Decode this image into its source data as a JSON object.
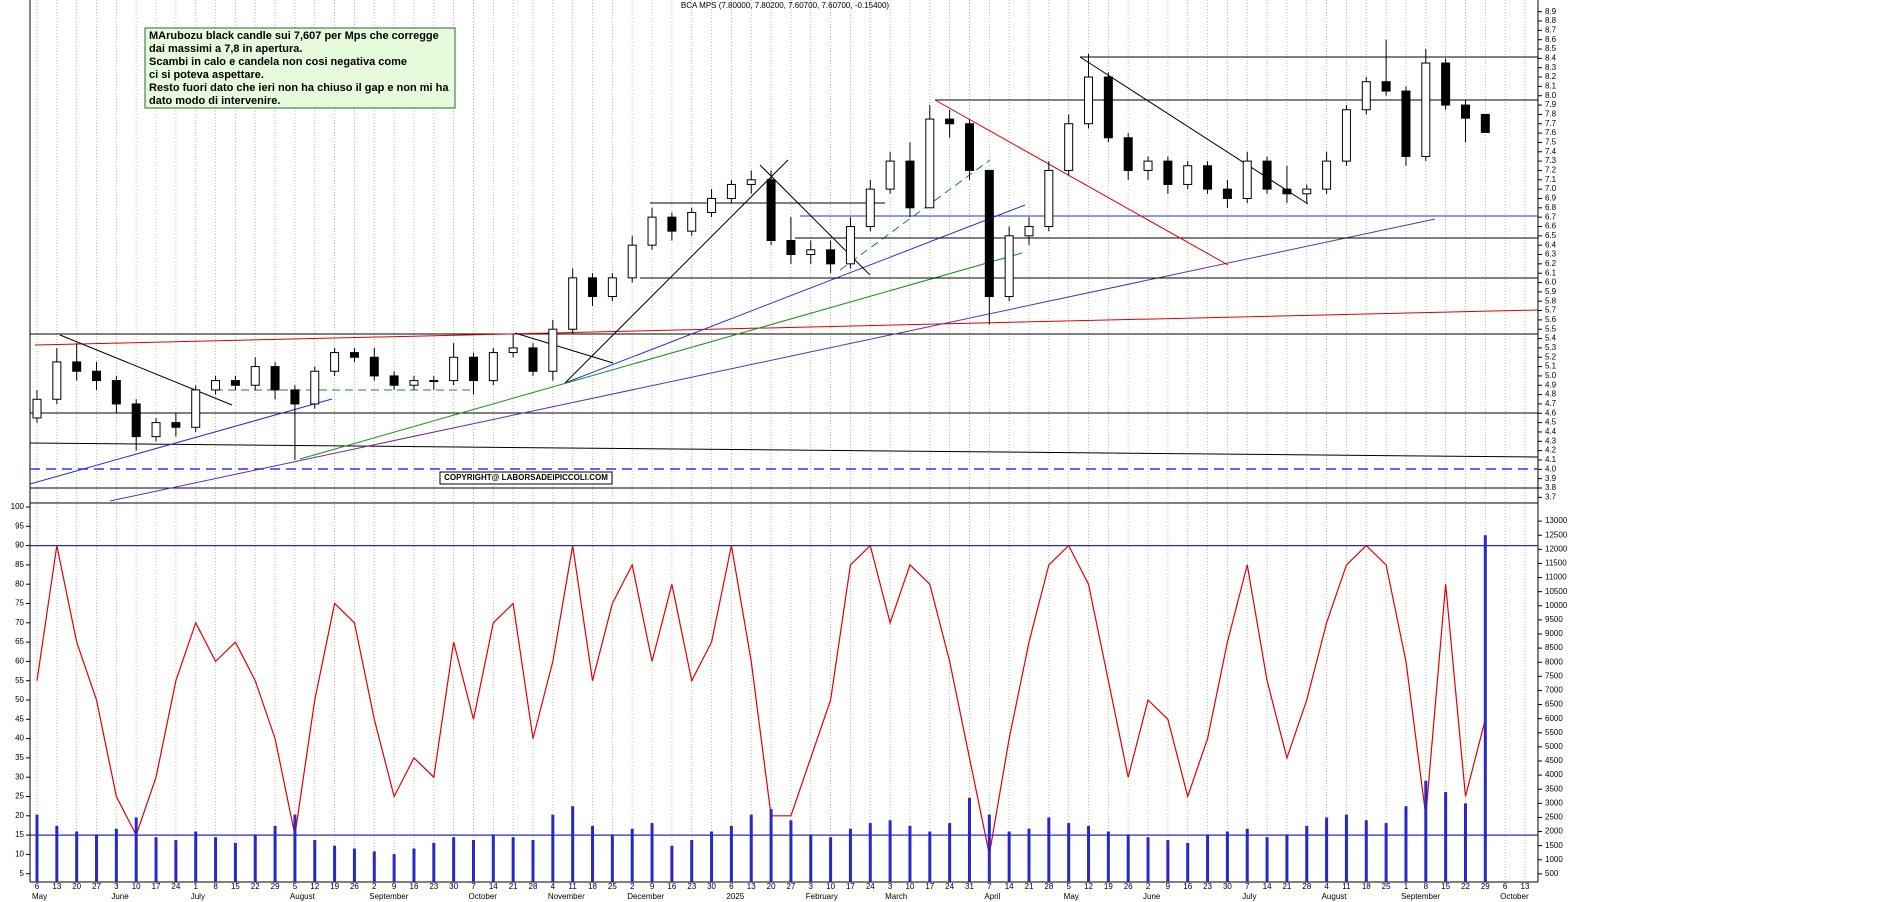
{
  "chart_data": [
    {
      "type": "candlestick",
      "title": "BCA MPS (7.80000, 7.80200, 7.60700, 7.60700, -0.15400)",
      "annotation": [
        "MArubozu black candle sui 7,607 per Mps che corregge",
        "dai massimi a 7,8 in apertura.",
        "Scambi in calo e candela non cosi negativa come",
        "ci si poteva aspettare.",
        "Resto fuori dato che ieri non ha chiuso il gap e non mi ha",
        "dato modo di intervenire."
      ],
      "copyright": "COPYRIGHT@ LABORSADEIPICCOLI.COM",
      "categories": [
        "6",
        "13",
        "20",
        "27",
        "3",
        "10",
        "17",
        "24",
        "1",
        "8",
        "15",
        "22",
        "29",
        "5",
        "12",
        "19",
        "26",
        "2",
        "9",
        "16",
        "23",
        "30",
        "7",
        "14",
        "21",
        "28",
        "4",
        "11",
        "18",
        "25",
        "2",
        "9",
        "16",
        "23",
        "30",
        "6",
        "13",
        "20",
        "27",
        "3",
        "10",
        "17",
        "24",
        "3",
        "10",
        "17",
        "24",
        "31",
        "7",
        "14",
        "21",
        "28",
        "5",
        "12",
        "19",
        "26",
        "2",
        "9",
        "16",
        "23",
        "30",
        "7",
        "14",
        "21",
        "28",
        "4",
        "11",
        "18",
        "25",
        "1",
        "8",
        "15",
        "22",
        "29",
        "6",
        "13"
      ],
      "months": [
        "May",
        "June",
        "July",
        "August",
        "September",
        "October",
        "November",
        "December",
        "2025",
        "February",
        "March",
        "April",
        "May",
        "June",
        "July",
        "August",
        "September",
        "October"
      ],
      "open": [
        4.55,
        4.75,
        5.15,
        5.05,
        4.95,
        4.7,
        4.35,
        4.5,
        4.45,
        4.85,
        4.95,
        4.9,
        5.1,
        4.85,
        4.7,
        5.05,
        5.25,
        5.2,
        5.0,
        4.9,
        4.95,
        4.95,
        5.2,
        4.95,
        5.25,
        5.3,
        5.05,
        5.5,
        6.05,
        5.85,
        6.05,
        6.4,
        6.7,
        6.55,
        6.75,
        6.9,
        7.05,
        7.1,
        6.45,
        6.3,
        6.35,
        6.2,
        6.6,
        7.0,
        7.3,
        6.8,
        7.75,
        7.7,
        7.2,
        5.85,
        6.5,
        6.6,
        7.2,
        7.7,
        8.2,
        7.55,
        7.2,
        7.3,
        7.05,
        7.25,
        7.0,
        6.9,
        7.3,
        7.0,
        6.95,
        7.0,
        7.3,
        7.85,
        8.15,
        8.05,
        7.35,
        8.35,
        7.9,
        7.8,
        null,
        null
      ],
      "high": [
        4.85,
        5.3,
        5.35,
        5.15,
        5.0,
        4.75,
        4.55,
        4.6,
        4.9,
        5.0,
        5.0,
        5.2,
        5.15,
        4.9,
        5.1,
        5.3,
        5.3,
        5.3,
        5.05,
        5.0,
        5.0,
        5.35,
        5.25,
        5.3,
        5.45,
        5.35,
        5.6,
        6.15,
        6.1,
        6.1,
        6.5,
        6.8,
        6.75,
        6.8,
        7.0,
        7.1,
        7.2,
        7.2,
        6.7,
        6.45,
        6.45,
        6.7,
        7.1,
        7.4,
        7.5,
        7.9,
        7.85,
        7.75,
        7.2,
        6.6,
        6.7,
        7.3,
        7.8,
        8.45,
        8.25,
        7.6,
        7.35,
        7.35,
        7.3,
        7.3,
        7.1,
        7.4,
        7.35,
        7.25,
        7.05,
        7.4,
        7.9,
        8.2,
        8.6,
        8.1,
        8.5,
        8.4,
        7.95,
        7.802,
        null,
        null
      ],
      "low": [
        4.5,
        4.7,
        4.95,
        4.85,
        4.6,
        4.2,
        4.3,
        4.35,
        4.4,
        4.8,
        4.85,
        4.85,
        4.75,
        4.1,
        4.65,
        5.0,
        5.15,
        4.95,
        4.85,
        4.85,
        4.85,
        4.9,
        4.8,
        4.9,
        5.2,
        5.0,
        4.95,
        5.45,
        5.75,
        5.8,
        6.0,
        6.35,
        6.45,
        6.5,
        6.7,
        6.85,
        6.95,
        6.4,
        6.2,
        6.2,
        6.1,
        6.15,
        6.55,
        6.95,
        6.7,
        6.8,
        7.55,
        7.1,
        5.55,
        5.8,
        6.4,
        6.55,
        7.15,
        7.65,
        7.5,
        7.1,
        7.1,
        6.95,
        7.0,
        6.95,
        6.8,
        6.85,
        6.95,
        6.85,
        6.85,
        6.95,
        7.25,
        7.8,
        8.0,
        7.25,
        7.3,
        7.85,
        7.5,
        7.607,
        null,
        null
      ],
      "close": [
        4.75,
        5.15,
        5.05,
        4.95,
        4.7,
        4.35,
        4.5,
        4.45,
        4.85,
        4.95,
        4.9,
        5.1,
        4.85,
        4.7,
        5.05,
        5.25,
        5.2,
        5.0,
        4.9,
        4.95,
        4.95,
        5.2,
        4.95,
        5.25,
        5.3,
        5.05,
        5.5,
        6.05,
        5.85,
        6.05,
        6.4,
        6.7,
        6.55,
        6.75,
        6.9,
        7.05,
        7.1,
        6.45,
        6.3,
        6.35,
        6.2,
        6.6,
        7.0,
        7.3,
        6.8,
        7.75,
        7.7,
        7.2,
        5.85,
        6.5,
        6.6,
        7.2,
        7.7,
        8.2,
        7.55,
        7.2,
        7.3,
        7.05,
        7.25,
        7.0,
        6.9,
        7.3,
        7.0,
        6.95,
        7.0,
        7.3,
        7.85,
        8.15,
        8.05,
        7.35,
        8.35,
        7.9,
        7.76,
        7.607,
        null,
        null
      ],
      "up_color": "#ffffff",
      "down_color": "#000000",
      "ylim": [
        3.65,
        8.95
      ],
      "yticks": [
        3.7,
        3.8,
        3.9,
        {
          "value": 4.0,
          "label": "4.0"
        },
        4.1,
        4.2,
        4.3,
        4.4,
        4.5,
        4.6,
        4.7,
        4.8,
        4.9,
        {
          "value": 5.0,
          "label": "5.0"
        },
        5.1,
        5.2,
        5.3,
        5.4,
        5.5,
        5.6,
        5.7,
        5.8,
        5.9,
        {
          "value": 6.0,
          "label": "6.0"
        },
        6.1,
        6.2,
        6.3,
        6.4,
        6.5,
        6.6,
        6.7,
        6.8,
        6.9,
        {
          "value": 7.0,
          "label": "7.0"
        },
        7.1,
        7.2,
        7.3,
        7.4,
        7.5,
        7.6,
        7.7,
        7.8,
        7.9,
        {
          "value": 8.0,
          "label": "8.0"
        },
        8.1,
        8.2,
        8.3,
        8.4,
        8.5,
        8.6,
        8.7,
        8.8,
        8.9
      ],
      "grid": true
    },
    {
      "type": "line-bar",
      "series": [
        {
          "type": "line",
          "color": "#e00000",
          "values": [
            55,
            90,
            65,
            50,
            25,
            15,
            30,
            55,
            70,
            60,
            65,
            55,
            40,
            15,
            50,
            75,
            70,
            45,
            25,
            35,
            30,
            65,
            45,
            70,
            75,
            40,
            60,
            90,
            55,
            75,
            85,
            60,
            80,
            55,
            65,
            90,
            60,
            20,
            20,
            35,
            50,
            85,
            90,
            70,
            85,
            80,
            60,
            35,
            10,
            40,
            65,
            85,
            90,
            80,
            55,
            30,
            50,
            45,
            25,
            40,
            65,
            85,
            55,
            35,
            50,
            70,
            85,
            90,
            85,
            60,
            20,
            80,
            25,
            45,
            null,
            null
          ]
        },
        {
          "type": "bar",
          "axis": "y2",
          "color": "#2828c8",
          "values": [
            2600,
            2200,
            2000,
            1900,
            2100,
            2500,
            1800,
            1700,
            2000,
            1800,
            1600,
            1900,
            2200,
            2600,
            1700,
            1500,
            1400,
            1300,
            1200,
            1400,
            1600,
            1800,
            1700,
            1900,
            1800,
            1700,
            2600,
            2900,
            2200,
            1900,
            2100,
            2300,
            1500,
            1700,
            2000,
            2200,
            2600,
            2800,
            2400,
            1900,
            1800,
            2100,
            2300,
            2400,
            2200,
            2000,
            2300,
            3200,
            2600,
            2000,
            2100,
            2500,
            2300,
            2200,
            2000,
            1900,
            1800,
            1700,
            1600,
            1900,
            2000,
            2100,
            1800,
            1900,
            2200,
            2500,
            2600,
            2400,
            2300,
            2900,
            3800,
            3400,
            3000,
            12500,
            null,
            null
          ]
        }
      ],
      "reference_lines": [
        90,
        15
      ],
      "reference_color": "#2828c8",
      "ylim": [
        0,
        100
      ],
      "yticks": [
        5,
        10,
        15,
        20,
        25,
        30,
        35,
        40,
        45,
        50,
        55,
        60,
        65,
        70,
        75,
        80,
        85,
        90,
        95,
        100
      ],
      "y2lim": [
        0,
        13500
      ],
      "y2ticks": [
        500,
        1000,
        1500,
        2000,
        2500,
        3000,
        3500,
        4000,
        4500,
        5000,
        5500,
        6000,
        6500,
        7000,
        7500,
        8000,
        8500,
        9000,
        9500,
        10000,
        10500,
        11000,
        11500,
        12000,
        12500,
        13000
      ]
    }
  ]
}
